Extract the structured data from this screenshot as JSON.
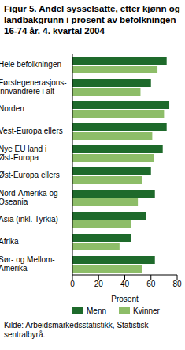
{
  "chart_data": {
    "type": "bar",
    "orientation": "horizontal",
    "title": "Figur 5. Andel sysselsatte, etter kjønn og landbakgrunn i prosent av befolkningen 16-74 år. 4. kvartal 2004",
    "x_label": "Prosent",
    "source": "Kilde: Arbeidsmarkedsstatistikk, Statistisk sentralbyrå.",
    "categories": [
      "Hele befolkningen",
      "Førstegenerasjons-\ninnvandrere i alt",
      "Norden",
      "Vest-Europa ellers",
      "Nye EU land i\nØst-Europa",
      "Øst-Europa ellers",
      "Nord-Amerika og\nOseania",
      "Asia (inkl. Tyrkia)",
      "Afrika",
      "Sør- og Mellom-\nAmerika"
    ],
    "series": [
      {
        "name": "Menn",
        "color": "#1e6a2b",
        "values": [
          72,
          60,
          74,
          72,
          69,
          60,
          63,
          56,
          45,
          63
        ]
      },
      {
        "name": "Kvinner",
        "color": "#8dbd68",
        "values": [
          65,
          52,
          70,
          61,
          62,
          53,
          50,
          45,
          36,
          53
        ]
      }
    ],
    "xlim": [
      0,
      80
    ],
    "xticks": [
      0,
      20,
      40,
      60,
      80
    ],
    "grid": false,
    "legend": "bottom"
  }
}
